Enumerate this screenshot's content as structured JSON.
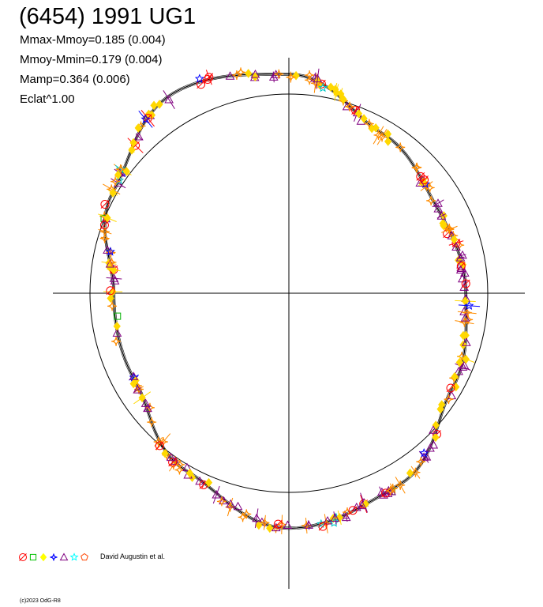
{
  "title": "(6454) 1991 UG1",
  "stats": [
    "Mmax-Mmoy=0.185 (0.004)",
    "Mmoy-Mmin=0.179 (0.004)",
    "Mamp=0.364 (0.006)",
    "Eclat^1.00"
  ],
  "legend": {
    "markers": [
      "circle",
      "square",
      "diamond",
      "cross-star",
      "triangle",
      "star",
      "pentagon"
    ],
    "colors": [
      "#ff0000",
      "#00c000",
      "#ffff00",
      "#0000ff",
      "#800080",
      "#00ffff",
      "#ff4500"
    ],
    "label": "David Augustin et al."
  },
  "footer": "(c)2023 OdG-R8",
  "chart_data": {
    "type": "scatter",
    "projection": "polar",
    "reference_radius": 1.0,
    "amplitude": 0.364,
    "mean_curve": [
      {
        "angle_deg": 0,
        "r": 0.89
      },
      {
        "angle_deg": 30,
        "r": 0.86
      },
      {
        "angle_deg": 60,
        "r": 0.93
      },
      {
        "angle_deg": 90,
        "r": 1.1
      },
      {
        "angle_deg": 120,
        "r": 1.16
      },
      {
        "angle_deg": 150,
        "r": 1.02
      },
      {
        "angle_deg": 180,
        "r": 0.88
      },
      {
        "angle_deg": 210,
        "r": 0.89
      },
      {
        "angle_deg": 240,
        "r": 1.03
      },
      {
        "angle_deg": 270,
        "r": 1.18
      },
      {
        "angle_deg": 300,
        "r": 1.11
      },
      {
        "angle_deg": 330,
        "r": 0.95
      }
    ],
    "series": [
      {
        "color": "#800080",
        "marker": "triangle"
      },
      {
        "color": "#ffd800",
        "marker": "diamond"
      },
      {
        "color": "#ff8c00",
        "marker": "cross-star"
      },
      {
        "color": "#ff0000",
        "marker": "circle"
      },
      {
        "color": "#0000ff",
        "marker": "star"
      },
      {
        "color": "#00c8c8",
        "marker": "star"
      },
      {
        "color": "#00b000",
        "marker": "square"
      }
    ]
  }
}
